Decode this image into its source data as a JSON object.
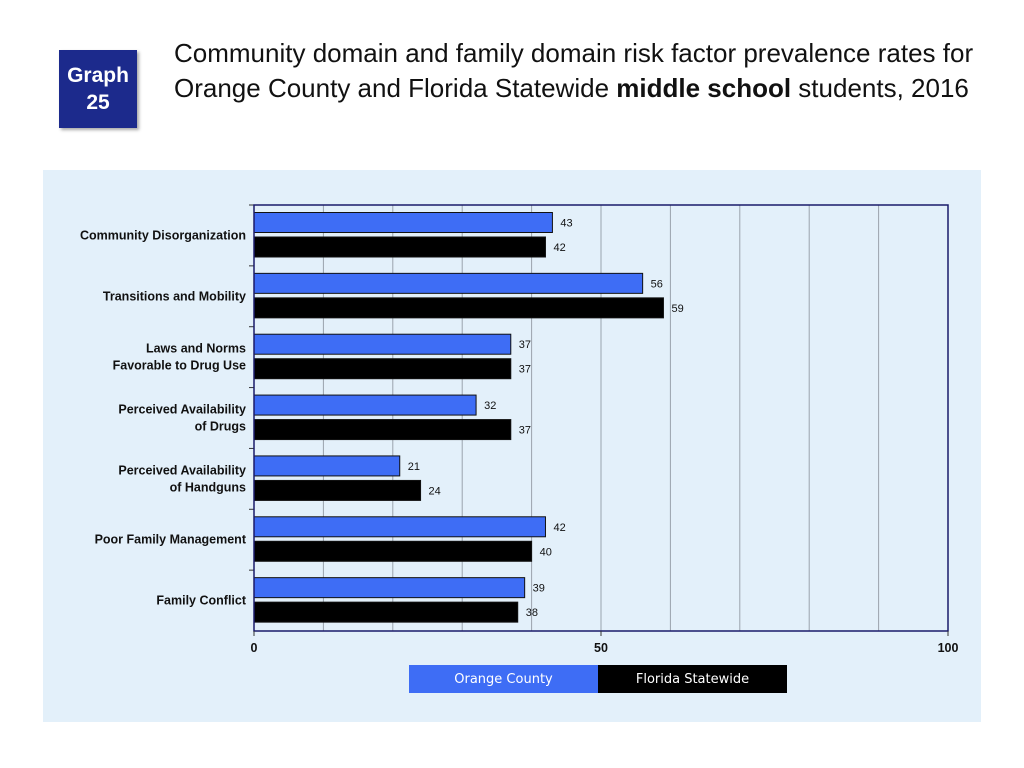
{
  "badge": {
    "line1": "Graph",
    "line2": "25"
  },
  "title": {
    "part1": "Community domain and family domain risk factor prevalence rates for Orange County and Florida Statewide ",
    "bold": "middle school",
    "part2": " students, 2016"
  },
  "colors": {
    "orange_county": "#3e6df5",
    "florida_statewide": "#000000",
    "panel": "#e3f0fa",
    "badge": "#1c2a8c"
  },
  "chart_data": {
    "type": "bar",
    "orientation": "horizontal",
    "categories": [
      [
        "Community Disorganization"
      ],
      [
        "Transitions and Mobility"
      ],
      [
        "Laws and Norms",
        "Favorable to Drug Use"
      ],
      [
        "Perceived Availability",
        "of Drugs"
      ],
      [
        "Perceived Availability",
        "of Handguns"
      ],
      [
        "Poor Family Management"
      ],
      [
        "Family Conflict"
      ]
    ],
    "series": [
      {
        "name": "Orange County",
        "values": [
          43,
          56,
          37,
          32,
          21,
          42,
          39
        ]
      },
      {
        "name": "Florida Statewide",
        "values": [
          42,
          59,
          37,
          37,
          24,
          40,
          38
        ]
      }
    ],
    "xlim": [
      0,
      100
    ],
    "xticks": [
      "0",
      "50",
      "100"
    ],
    "minor_gridlines_every": 10,
    "legend_position": "bottom-center"
  }
}
